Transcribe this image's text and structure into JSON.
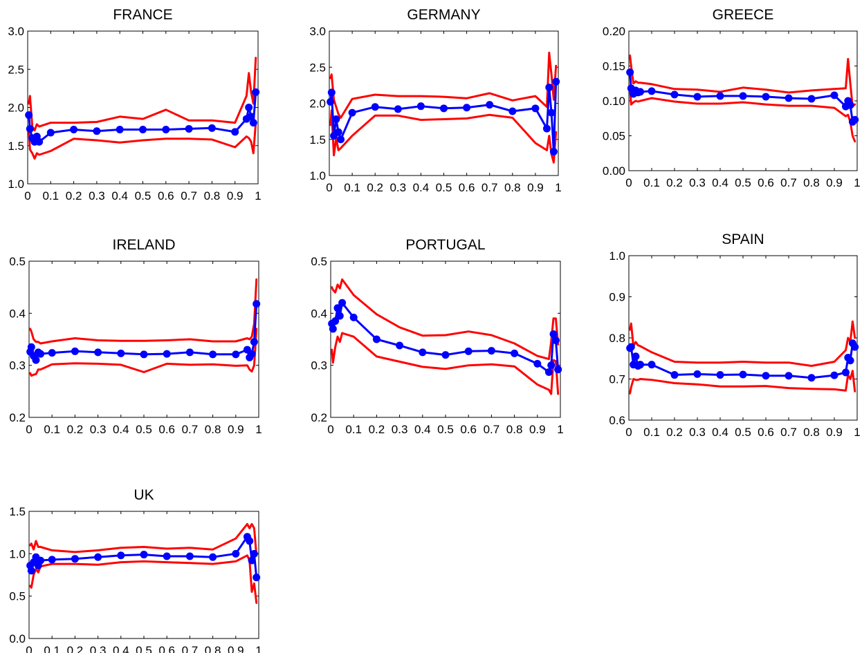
{
  "colors": {
    "estimate": "#0000ff",
    "band": "#ff0000",
    "axes": "#000000"
  },
  "chart_data": [
    {
      "type": "line",
      "title": "FRANCE",
      "ylim": [
        1.0,
        3.0
      ],
      "xlim": [
        0,
        1
      ],
      "yticks": [
        "1.0",
        "1.5",
        "2.0",
        "2.5",
        "3.0"
      ],
      "xticks": [
        "0",
        "0.1",
        "0.2",
        "0.3",
        "0.4",
        "0.5",
        "0.6",
        "0.7",
        "0.8",
        "0.9",
        "1"
      ],
      "x": [
        0.005,
        0.01,
        0.02,
        0.03,
        0.04,
        0.05,
        0.1,
        0.2,
        0.3,
        0.4,
        0.5,
        0.6,
        0.7,
        0.8,
        0.9,
        0.95,
        0.96,
        0.97,
        0.98,
        0.99
      ],
      "series": [
        {
          "values": [
            1.9,
            1.72,
            1.6,
            1.55,
            1.62,
            1.55,
            1.67,
            1.71,
            1.69,
            1.71,
            1.71,
            1.71,
            1.72,
            1.73,
            1.68,
            1.85,
            2.0,
            1.88,
            1.8,
            2.2
          ]
        },
        {
          "values": [
            2.05,
            2.15,
            1.75,
            1.7,
            1.78,
            1.75,
            1.8,
            1.8,
            1.81,
            1.88,
            1.85,
            1.97,
            1.83,
            1.83,
            1.8,
            2.15,
            2.45,
            2.2,
            2.05,
            2.65
          ]
        },
        {
          "values": [
            1.72,
            1.45,
            1.4,
            1.33,
            1.4,
            1.38,
            1.43,
            1.59,
            1.57,
            1.54,
            1.57,
            1.59,
            1.59,
            1.58,
            1.48,
            1.62,
            1.6,
            1.55,
            1.4,
            1.8
          ]
        }
      ]
    },
    {
      "type": "line",
      "title": "GERMANY",
      "ylim": [
        1.0,
        3.0
      ],
      "xlim": [
        0,
        1
      ],
      "yticks": [
        "1.0",
        "1.5",
        "2.0",
        "2.5",
        "3.0"
      ],
      "xticks": [
        "0",
        "0.1",
        "0.2",
        "0.3",
        "0.4",
        "0.5",
        "0.6",
        "0.7",
        "0.8",
        "0.9",
        "1"
      ],
      "x": [
        0.005,
        0.01,
        0.02,
        0.03,
        0.04,
        0.05,
        0.1,
        0.2,
        0.3,
        0.4,
        0.5,
        0.6,
        0.7,
        0.8,
        0.9,
        0.95,
        0.96,
        0.97,
        0.98,
        0.99
      ],
      "series": [
        {
          "values": [
            2.02,
            2.15,
            1.55,
            1.78,
            1.6,
            1.5,
            1.87,
            1.95,
            1.92,
            1.96,
            1.93,
            1.94,
            1.98,
            1.89,
            1.93,
            1.65,
            2.22,
            1.87,
            1.33,
            2.3
          ]
        },
        {
          "values": [
            2.35,
            2.4,
            2.05,
            1.95,
            1.85,
            1.8,
            2.06,
            2.12,
            2.1,
            2.1,
            2.09,
            2.07,
            2.14,
            2.04,
            2.1,
            1.95,
            2.7,
            2.4,
            2.05,
            2.52
          ]
        },
        {
          "values": [
            1.7,
            1.9,
            1.28,
            1.52,
            1.35,
            1.38,
            1.55,
            1.83,
            1.83,
            1.77,
            1.78,
            1.79,
            1.84,
            1.8,
            1.45,
            1.35,
            1.55,
            1.3,
            1.18,
            1.6
          ]
        }
      ]
    },
    {
      "type": "line",
      "title": "GREECE",
      "ylim": [
        0.0,
        0.2
      ],
      "xlim": [
        0,
        1
      ],
      "yticks": [
        "0.00",
        "0.05",
        "0.10",
        "0.15",
        "0.20"
      ],
      "xticks": [
        "0",
        "0.1",
        "0.2",
        "0.3",
        "0.4",
        "0.5",
        "0.6",
        "0.7",
        "0.8",
        "0.9",
        "1"
      ],
      "x": [
        0.005,
        0.01,
        0.02,
        0.03,
        0.04,
        0.05,
        0.1,
        0.2,
        0.3,
        0.4,
        0.5,
        0.6,
        0.7,
        0.8,
        0.9,
        0.95,
        0.96,
        0.97,
        0.98,
        0.99
      ],
      "series": [
        {
          "values": [
            0.141,
            0.118,
            0.11,
            0.115,
            0.112,
            0.113,
            0.114,
            0.109,
            0.106,
            0.107,
            0.107,
            0.106,
            0.104,
            0.103,
            0.108,
            0.092,
            0.1,
            0.094,
            0.07,
            0.073
          ]
        },
        {
          "values": [
            0.165,
            0.15,
            0.125,
            0.128,
            0.126,
            0.126,
            0.124,
            0.117,
            0.116,
            0.113,
            0.119,
            0.116,
            0.112,
            0.115,
            0.117,
            0.118,
            0.16,
            0.125,
            0.092,
            0.095
          ]
        },
        {
          "values": [
            0.12,
            0.095,
            0.098,
            0.1,
            0.099,
            0.1,
            0.104,
            0.099,
            0.096,
            0.096,
            0.098,
            0.095,
            0.093,
            0.093,
            0.09,
            0.078,
            0.08,
            0.07,
            0.05,
            0.042
          ]
        }
      ]
    },
    {
      "type": "line",
      "title": "IRELAND",
      "ylim": [
        0.2,
        0.5
      ],
      "xlim": [
        0,
        1
      ],
      "yticks": [
        "0.2",
        "0.3",
        "0.4",
        "0.5"
      ],
      "xticks": [
        "0",
        "0.1",
        "0.2",
        "0.3",
        "0.4",
        "0.5",
        "0.6",
        "0.7",
        "0.8",
        "0.9",
        "1"
      ],
      "x": [
        0.005,
        0.01,
        0.02,
        0.03,
        0.04,
        0.05,
        0.1,
        0.2,
        0.3,
        0.4,
        0.5,
        0.6,
        0.7,
        0.8,
        0.9,
        0.95,
        0.96,
        0.97,
        0.98,
        0.99
      ],
      "series": [
        {
          "values": [
            0.326,
            0.335,
            0.318,
            0.31,
            0.325,
            0.322,
            0.324,
            0.327,
            0.325,
            0.323,
            0.321,
            0.322,
            0.325,
            0.321,
            0.321,
            0.33,
            0.315,
            0.322,
            0.345,
            0.418
          ]
        },
        {
          "values": [
            0.37,
            0.365,
            0.35,
            0.345,
            0.345,
            0.342,
            0.346,
            0.352,
            0.348,
            0.347,
            0.347,
            0.348,
            0.35,
            0.346,
            0.346,
            0.352,
            0.35,
            0.355,
            0.38,
            0.465
          ]
        },
        {
          "values": [
            0.285,
            0.28,
            0.282,
            0.283,
            0.292,
            0.292,
            0.302,
            0.304,
            0.303,
            0.301,
            0.287,
            0.303,
            0.301,
            0.302,
            0.299,
            0.3,
            0.292,
            0.288,
            0.3,
            0.37
          ]
        }
      ]
    },
    {
      "type": "line",
      "title": "PORTUGAL",
      "ylim": [
        0.2,
        0.5
      ],
      "xlim": [
        0,
        1
      ],
      "yticks": [
        "0.2",
        "0.3",
        "0.4",
        "0.5"
      ],
      "xticks": [
        "0",
        "0.1",
        "0.2",
        "0.3",
        "0.4",
        "0.5",
        "0.6",
        "0.7",
        "0.8",
        "0.9",
        "1"
      ],
      "x": [
        0.005,
        0.01,
        0.02,
        0.03,
        0.04,
        0.05,
        0.1,
        0.2,
        0.3,
        0.4,
        0.5,
        0.6,
        0.7,
        0.8,
        0.9,
        0.95,
        0.96,
        0.97,
        0.98,
        0.99
      ],
      "series": [
        {
          "values": [
            0.38,
            0.37,
            0.385,
            0.41,
            0.395,
            0.42,
            0.392,
            0.35,
            0.338,
            0.325,
            0.32,
            0.327,
            0.328,
            0.323,
            0.303,
            0.287,
            0.3,
            0.36,
            0.348,
            0.292
          ]
        },
        {
          "values": [
            0.45,
            0.445,
            0.44,
            0.455,
            0.448,
            0.465,
            0.435,
            0.398,
            0.373,
            0.357,
            0.358,
            0.365,
            0.358,
            0.342,
            0.318,
            0.312,
            0.345,
            0.39,
            0.39,
            0.34
          ]
        },
        {
          "values": [
            0.33,
            0.305,
            0.335,
            0.355,
            0.345,
            0.362,
            0.355,
            0.317,
            0.307,
            0.297,
            0.293,
            0.3,
            0.302,
            0.298,
            0.263,
            0.253,
            0.245,
            0.31,
            0.308,
            0.245
          ]
        }
      ]
    },
    {
      "type": "line",
      "title": "SPAIN",
      "ylim": [
        0.6,
        1.0
      ],
      "xlim": [
        0,
        1
      ],
      "yticks": [
        "0.6",
        "0.7",
        "0.8",
        "0.9",
        "1.0"
      ],
      "xticks": [
        "0",
        "0.1",
        "0.2",
        "0.3",
        "0.4",
        "0.5",
        "0.6",
        "0.7",
        "0.8",
        "0.9",
        "1"
      ],
      "x": [
        0.005,
        0.01,
        0.02,
        0.03,
        0.04,
        0.05,
        0.1,
        0.2,
        0.3,
        0.4,
        0.5,
        0.6,
        0.7,
        0.8,
        0.9,
        0.95,
        0.96,
        0.97,
        0.98,
        0.99
      ],
      "series": [
        {
          "values": [
            0.775,
            0.778,
            0.735,
            0.755,
            0.732,
            0.735,
            0.735,
            0.71,
            0.712,
            0.71,
            0.711,
            0.708,
            0.708,
            0.703,
            0.709,
            0.716,
            0.752,
            0.745,
            0.787,
            0.778
          ]
        },
        {
          "values": [
            0.82,
            0.835,
            0.78,
            0.79,
            0.782,
            0.78,
            0.765,
            0.742,
            0.74,
            0.74,
            0.742,
            0.74,
            0.74,
            0.732,
            0.742,
            0.77,
            0.8,
            0.79,
            0.84,
            0.8
          ]
        },
        {
          "values": [
            0.665,
            0.68,
            0.7,
            0.698,
            0.698,
            0.7,
            0.698,
            0.69,
            0.687,
            0.682,
            0.682,
            0.683,
            0.678,
            0.676,
            0.675,
            0.672,
            0.71,
            0.7,
            0.72,
            0.67
          ]
        }
      ]
    },
    {
      "type": "line",
      "title": "UK",
      "ylim": [
        0.0,
        1.5
      ],
      "xlim": [
        0,
        1
      ],
      "yticks": [
        "0.0",
        "0.5",
        "1.0",
        "1.5"
      ],
      "xticks": [
        "0",
        "0.1",
        "0.2",
        "0.3",
        "0.4",
        "0.5",
        "0.6",
        "0.7",
        "0.8",
        "0.9",
        "1"
      ],
      "x": [
        0.005,
        0.01,
        0.02,
        0.03,
        0.04,
        0.05,
        0.1,
        0.2,
        0.3,
        0.4,
        0.5,
        0.6,
        0.7,
        0.8,
        0.9,
        0.95,
        0.96,
        0.97,
        0.98,
        0.99
      ],
      "series": [
        {
          "values": [
            0.86,
            0.8,
            0.9,
            0.96,
            0.86,
            0.92,
            0.93,
            0.94,
            0.96,
            0.98,
            0.99,
            0.97,
            0.97,
            0.96,
            1.0,
            1.2,
            1.15,
            0.92,
            1.0,
            0.72
          ]
        },
        {
          "values": [
            1.1,
            1.12,
            1.05,
            1.15,
            1.08,
            1.08,
            1.04,
            1.02,
            1.04,
            1.07,
            1.08,
            1.06,
            1.07,
            1.05,
            1.18,
            1.35,
            1.3,
            1.35,
            1.3,
            0.98
          ]
        },
        {
          "values": [
            0.62,
            0.6,
            0.75,
            0.82,
            0.78,
            0.85,
            0.88,
            0.88,
            0.87,
            0.9,
            0.91,
            0.9,
            0.89,
            0.88,
            0.91,
            0.98,
            0.92,
            0.55,
            0.65,
            0.42
          ]
        }
      ]
    }
  ]
}
